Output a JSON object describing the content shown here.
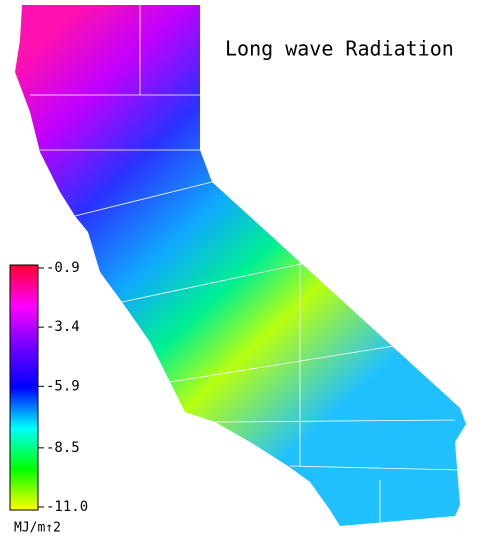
{
  "map": {
    "title": "Long wave Radiation",
    "colorbar": {
      "lim": [
        -11,
        -0.9
      ],
      "ticks": [
        -0.9,
        -3.4,
        -5.9,
        -8.5,
        {
          "value": -11,
          "label": "-11.0"
        }
      ],
      "unit": "MJ/m↑2",
      "colors": [
        "#ff0030",
        "#ff00ff",
        "#7000ff",
        "#0000ff",
        "#00ffff",
        "#00ff00",
        "#ffff00"
      ]
    }
  }
}
